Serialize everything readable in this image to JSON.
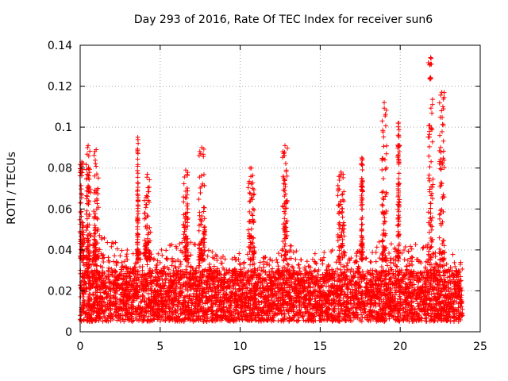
{
  "chart_data": {
    "type": "scatter",
    "title": "Day 293 of 2016, Rate Of TEC Index for receiver sun6",
    "xlabel": "GPS time / hours",
    "ylabel": "ROTI / TECUs",
    "xlim": [
      0,
      25
    ],
    "ylim": [
      0,
      0.14
    ],
    "x_ticks": [
      0,
      5,
      10,
      15,
      20,
      25
    ],
    "x_tick_labels": [
      "0",
      "5",
      "10",
      "15",
      "20",
      "25"
    ],
    "y_ticks": [
      0,
      0.02,
      0.04,
      0.06,
      0.08,
      0.1,
      0.12,
      0.14
    ],
    "y_tick_labels": [
      "0",
      "0.02",
      "0.04",
      "0.06",
      "0.08",
      "0.1",
      "0.12",
      "0.14"
    ],
    "grid": true,
    "marker": "+",
    "series_color": "#ff0000",
    "data_x_range": [
      0,
      23.9
    ],
    "dense_band": [
      0.005,
      0.03
    ],
    "baseline_envelope": [
      [
        0.0,
        0.045
      ],
      [
        0.5,
        0.05
      ],
      [
        1.0,
        0.05
      ],
      [
        2.0,
        0.045
      ],
      [
        3.0,
        0.04
      ],
      [
        4.0,
        0.04
      ],
      [
        5.0,
        0.04
      ],
      [
        6.0,
        0.045
      ],
      [
        7.0,
        0.045
      ],
      [
        8.0,
        0.04
      ],
      [
        9.0,
        0.038
      ],
      [
        10.0,
        0.04
      ],
      [
        11.0,
        0.04
      ],
      [
        12.0,
        0.035
      ],
      [
        13.0,
        0.045
      ],
      [
        14.0,
        0.035
      ],
      [
        15.0,
        0.04
      ],
      [
        16.0,
        0.045
      ],
      [
        17.0,
        0.04
      ],
      [
        18.0,
        0.04
      ],
      [
        19.0,
        0.05
      ],
      [
        20.0,
        0.04
      ],
      [
        21.0,
        0.045
      ],
      [
        22.0,
        0.045
      ],
      [
        23.0,
        0.04
      ],
      [
        23.9,
        0.035
      ]
    ],
    "spike_clusters": [
      {
        "x_center": 0.1,
        "x_width": 0.25,
        "peak": 0.083
      },
      {
        "x_center": 0.5,
        "x_width": 0.25,
        "peak": 0.091
      },
      {
        "x_center": 1.0,
        "x_width": 0.3,
        "peak": 0.089
      },
      {
        "x_center": 3.6,
        "x_width": 0.05,
        "peak": 0.095
      },
      {
        "x_center": 4.2,
        "x_width": 0.4,
        "peak": 0.077
      },
      {
        "x_center": 6.6,
        "x_width": 0.3,
        "peak": 0.079
      },
      {
        "x_center": 7.6,
        "x_width": 0.4,
        "peak": 0.09
      },
      {
        "x_center": 10.7,
        "x_width": 0.4,
        "peak": 0.08
      },
      {
        "x_center": 12.8,
        "x_width": 0.3,
        "peak": 0.091
      },
      {
        "x_center": 16.3,
        "x_width": 0.4,
        "peak": 0.078
      },
      {
        "x_center": 17.6,
        "x_width": 0.1,
        "peak": 0.085
      },
      {
        "x_center": 19.0,
        "x_width": 0.3,
        "peak": 0.112
      },
      {
        "x_center": 19.9,
        "x_width": 0.1,
        "peak": 0.102
      },
      {
        "x_center": 21.9,
        "x_width": 0.3,
        "peak": 0.134
      },
      {
        "x_center": 22.6,
        "x_width": 0.3,
        "peak": 0.117
      }
    ]
  }
}
